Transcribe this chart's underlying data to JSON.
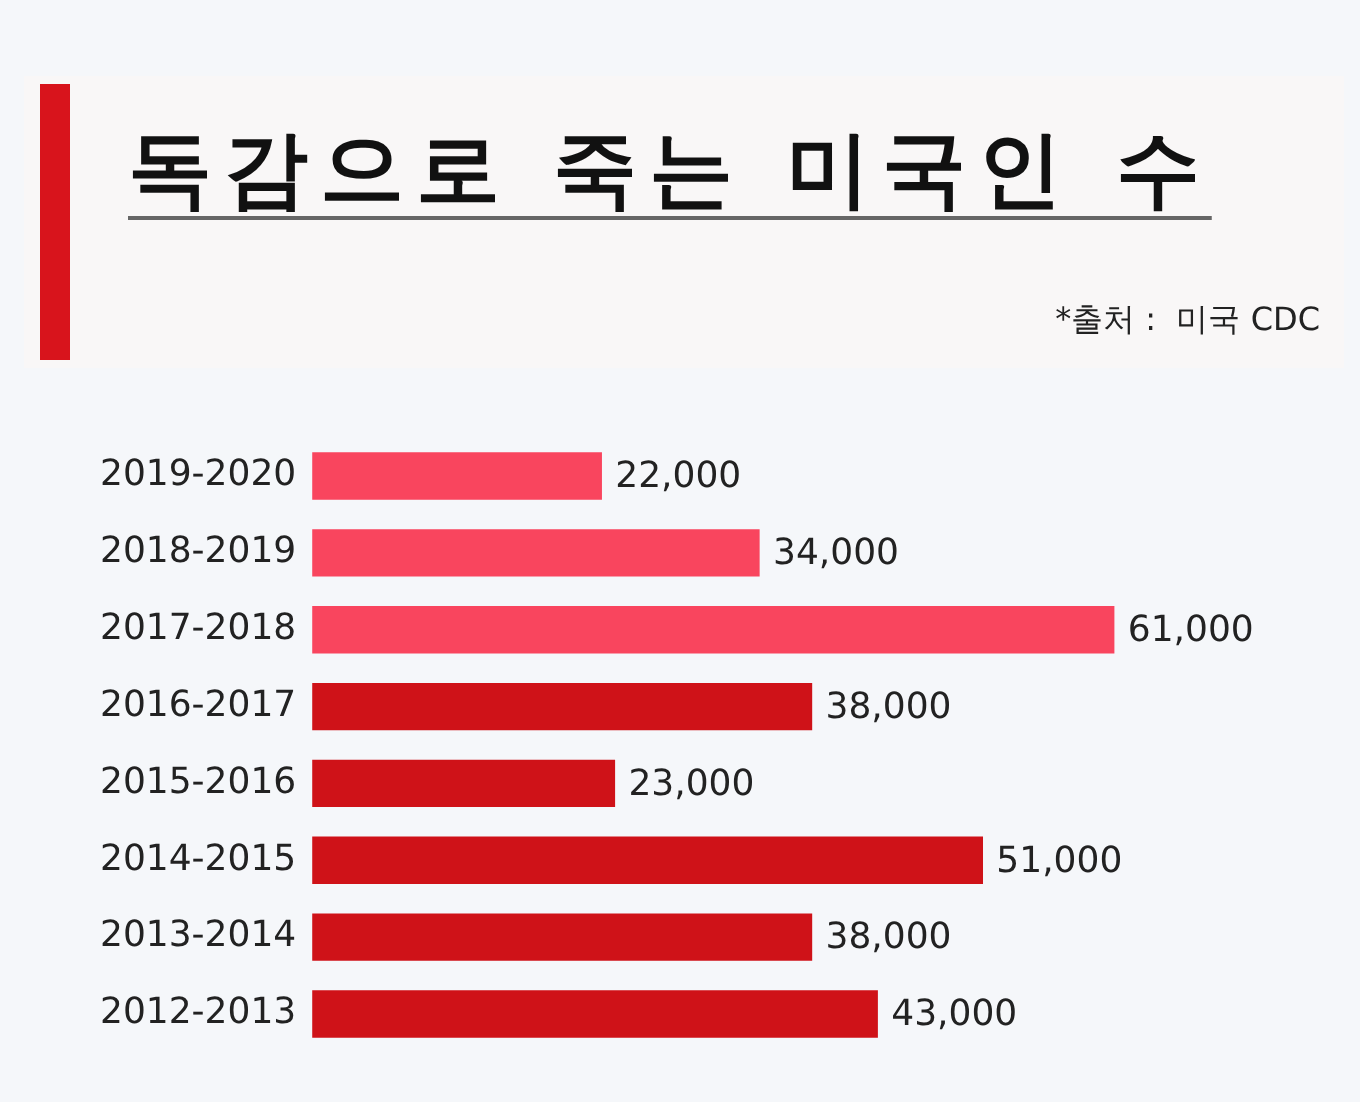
{
  "chart_data": {
    "type": "bar",
    "orientation": "horizontal",
    "title": "독감으로 죽는 미국인 수",
    "annotations": [
      "*출처 :  미국 CDC"
    ],
    "categories": [
      "2019-2020",
      "2018-2019",
      "2017-2018",
      "2016-2017",
      "2015-2016",
      "2014-2015",
      "2013-2014",
      "2012-2013"
    ],
    "values": [
      22000,
      34000,
      61000,
      38000,
      23000,
      51000,
      38000,
      43000
    ],
    "value_labels": [
      "22,000",
      "34,000",
      "61,000",
      "38,000",
      "23,000",
      "51,000",
      "38,000",
      "43,000"
    ],
    "colors": [
      "#f9455e",
      "#f9455e",
      "#f9455e",
      "#cf1218",
      "#cf1218",
      "#cf1218",
      "#cf1218",
      "#cf1218"
    ],
    "tick_labels": "y"
  }
}
